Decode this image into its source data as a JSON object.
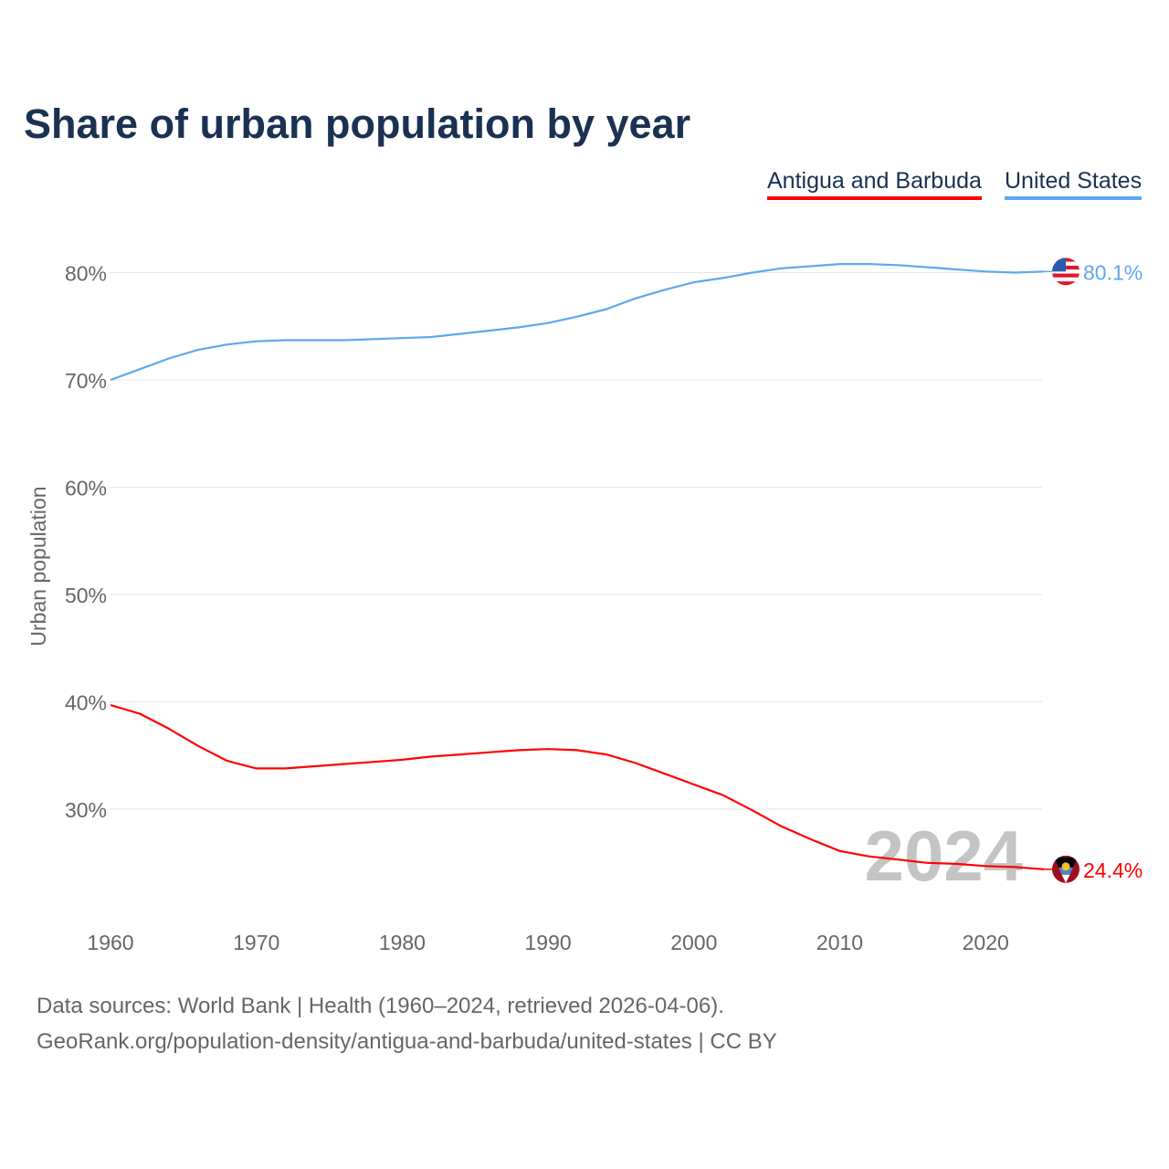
{
  "chart_data": {
    "type": "line",
    "title": "Share of urban population by year",
    "xlabel": "",
    "ylabel": "Urban population",
    "xlim": [
      1960,
      2024
    ],
    "ylim": [
      20,
      85
    ],
    "grid": true,
    "legend_position": "top-right",
    "x_ticks": [
      1960,
      1970,
      1980,
      1990,
      2000,
      2010,
      2020
    ],
    "x_tick_labels": [
      "1960",
      "1970",
      "1980",
      "1990",
      "2000",
      "2010",
      "2020"
    ],
    "y_ticks": [
      30,
      40,
      50,
      60,
      70,
      80
    ],
    "y_tick_labels": [
      "30%",
      "40%",
      "50%",
      "60%",
      "70%",
      "80%"
    ],
    "year_watermark": "2024",
    "series": [
      {
        "name": "Antigua and Barbuda",
        "color": "#ff0000",
        "end_label": "24.4%",
        "flag": "antigua-flag",
        "x": [
          1960,
          1962,
          1964,
          1966,
          1968,
          1970,
          1972,
          1974,
          1976,
          1978,
          1980,
          1982,
          1984,
          1986,
          1988,
          1990,
          1992,
          1994,
          1996,
          1998,
          2000,
          2002,
          2004,
          2006,
          2008,
          2010,
          2012,
          2014,
          2016,
          2018,
          2020,
          2022,
          2024
        ],
        "values": [
          39.7,
          38.9,
          37.5,
          35.9,
          34.5,
          33.8,
          33.8,
          34.0,
          34.2,
          34.4,
          34.6,
          34.9,
          35.1,
          35.3,
          35.5,
          35.6,
          35.5,
          35.1,
          34.3,
          33.3,
          32.3,
          31.3,
          29.9,
          28.4,
          27.2,
          26.1,
          25.6,
          25.3,
          25.0,
          24.9,
          24.7,
          24.6,
          24.4
        ]
      },
      {
        "name": "United States",
        "color": "#5ea8ee",
        "end_label": "80.1%",
        "flag": "usa-flag",
        "x": [
          1960,
          1962,
          1964,
          1966,
          1968,
          1970,
          1972,
          1974,
          1976,
          1978,
          1980,
          1982,
          1984,
          1986,
          1988,
          1990,
          1992,
          1994,
          1996,
          1998,
          2000,
          2002,
          2004,
          2006,
          2008,
          2010,
          2012,
          2014,
          2016,
          2018,
          2020,
          2022,
          2024
        ],
        "values": [
          70.0,
          71.0,
          72.0,
          72.8,
          73.3,
          73.6,
          73.7,
          73.7,
          73.7,
          73.8,
          73.9,
          74.0,
          74.3,
          74.6,
          74.9,
          75.3,
          75.9,
          76.6,
          77.6,
          78.4,
          79.1,
          79.5,
          80.0,
          80.4,
          80.6,
          80.8,
          80.8,
          80.7,
          80.5,
          80.3,
          80.1,
          80.0,
          80.1
        ]
      }
    ]
  },
  "sources": {
    "line1": "Data sources: World Bank | Health (1960–2024, retrieved 2026-04-06).",
    "line2": "GeoRank.org/population-density/antigua-and-barbuda/united-states | CC BY"
  }
}
